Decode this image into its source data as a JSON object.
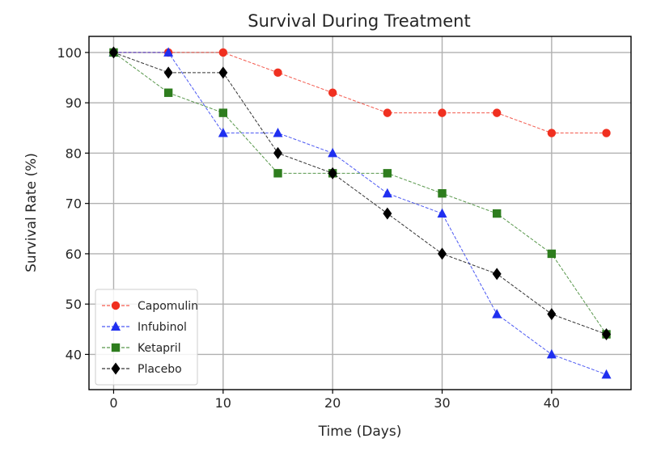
{
  "chart_data": {
    "type": "line",
    "title": "Survival During Treatment",
    "xlabel": "Time (Days)",
    "ylabel": "Survival Rate (%)",
    "xlim": [
      -2.25,
      47.25
    ],
    "ylim": [
      33,
      103.2
    ],
    "xticks": [
      0,
      10,
      20,
      30,
      40
    ],
    "yticks": [
      40,
      50,
      60,
      70,
      80,
      90,
      100
    ],
    "grid": true,
    "legend_position": "lower-left",
    "x": [
      0,
      5,
      10,
      15,
      20,
      25,
      30,
      35,
      40,
      45
    ],
    "series": [
      {
        "name": "Capomulin",
        "color": "#f03020",
        "marker": "circle",
        "values": [
          100,
          100,
          100,
          96,
          92,
          88,
          88,
          88,
          84,
          84
        ]
      },
      {
        "name": "Infubinol",
        "color": "#1f2ff0",
        "marker": "triangle",
        "values": [
          100,
          100,
          84,
          84,
          80,
          72,
          68,
          48,
          40,
          36
        ]
      },
      {
        "name": "Ketapril",
        "color": "#2e7d1e",
        "marker": "square",
        "values": [
          100,
          92,
          88,
          76,
          76,
          76,
          72,
          68,
          60,
          44
        ]
      },
      {
        "name": "Placebo",
        "color": "#000000",
        "marker": "diamond",
        "values": [
          100,
          96,
          96,
          80,
          76,
          68,
          60,
          56,
          48,
          44
        ]
      }
    ]
  }
}
